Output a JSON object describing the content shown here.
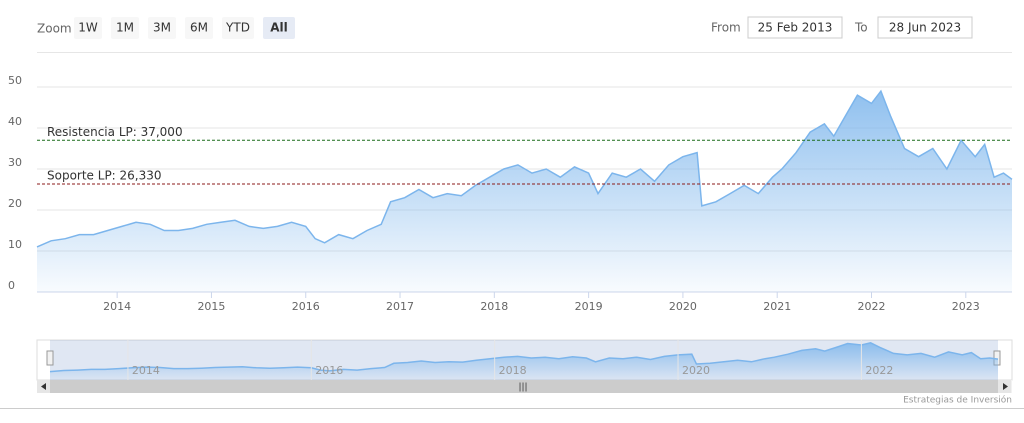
{
  "chart_data": {
    "type": "area",
    "zoom": {
      "label": "Zoom",
      "buttons": [
        "1W",
        "1M",
        "3M",
        "6M",
        "YTD",
        "All"
      ],
      "selected": 5
    },
    "range": {
      "from_label": "From",
      "from": "25 Feb 2013",
      "to_label": "To",
      "to": "28 Jun 2023"
    },
    "x": [
      2013.15,
      2013.3,
      2013.45,
      2013.6,
      2013.75,
      2013.9,
      2014.05,
      2014.2,
      2014.35,
      2014.5,
      2014.65,
      2014.8,
      2014.95,
      2015.1,
      2015.25,
      2015.4,
      2015.55,
      2015.7,
      2015.85,
      2016.0,
      2016.1,
      2016.2,
      2016.35,
      2016.5,
      2016.65,
      2016.8,
      2016.9,
      2017.05,
      2017.2,
      2017.35,
      2017.5,
      2017.65,
      2017.8,
      2017.95,
      2018.1,
      2018.25,
      2018.4,
      2018.55,
      2018.7,
      2018.85,
      2019.0,
      2019.1,
      2019.25,
      2019.4,
      2019.55,
      2019.7,
      2019.85,
      2020.0,
      2020.15,
      2020.2,
      2020.35,
      2020.5,
      2020.65,
      2020.8,
      2020.95,
      2021.05,
      2021.2,
      2021.35,
      2021.5,
      2021.6,
      2021.75,
      2021.85,
      2022.0,
      2022.1,
      2022.2,
      2022.35,
      2022.5,
      2022.65,
      2022.8,
      2022.95,
      2023.1,
      2023.2,
      2023.3,
      2023.4,
      2023.49
    ],
    "series": [
      {
        "color": "#7cb5ec",
        "values": [
          11,
          12.5,
          13,
          14,
          14,
          15,
          16,
          17,
          16.5,
          15,
          15,
          15.5,
          16.5,
          17,
          17.5,
          16,
          15.5,
          16,
          17,
          16,
          13,
          12,
          14,
          13,
          15,
          16.5,
          22,
          23,
          25,
          23,
          24,
          23.5,
          26,
          28,
          30,
          31,
          29,
          30,
          28,
          30.5,
          29,
          24,
          29,
          28,
          30,
          27,
          31,
          33,
          34,
          21,
          22,
          24,
          26,
          24,
          28,
          30,
          34,
          39,
          41,
          38,
          44,
          48,
          46,
          49,
          43,
          35,
          33,
          35,
          30,
          37,
          33,
          36,
          28,
          29,
          27.5
        ]
      }
    ],
    "xlim": [
      2013.15,
      2023.49
    ],
    "xticks": [
      2014,
      2015,
      2016,
      2017,
      2018,
      2019,
      2020,
      2021,
      2022,
      2023
    ],
    "ylim": [
      0,
      50
    ],
    "yticks": [
      0,
      10,
      20,
      30,
      40,
      50
    ],
    "grid": true,
    "plot_lines": [
      {
        "value": 37,
        "label": "Resistencia LP: 37,000",
        "color": "#1a6b1a"
      },
      {
        "value": 26.33,
        "label": "Soporte LP: 26,330",
        "color": "#8b1a1a"
      }
    ],
    "navigator": {
      "xticks": [
        2014,
        2016,
        2018,
        2020,
        2022
      ],
      "ylim": [
        0,
        50
      ]
    },
    "credits": "Estrategias de Inversión"
  }
}
